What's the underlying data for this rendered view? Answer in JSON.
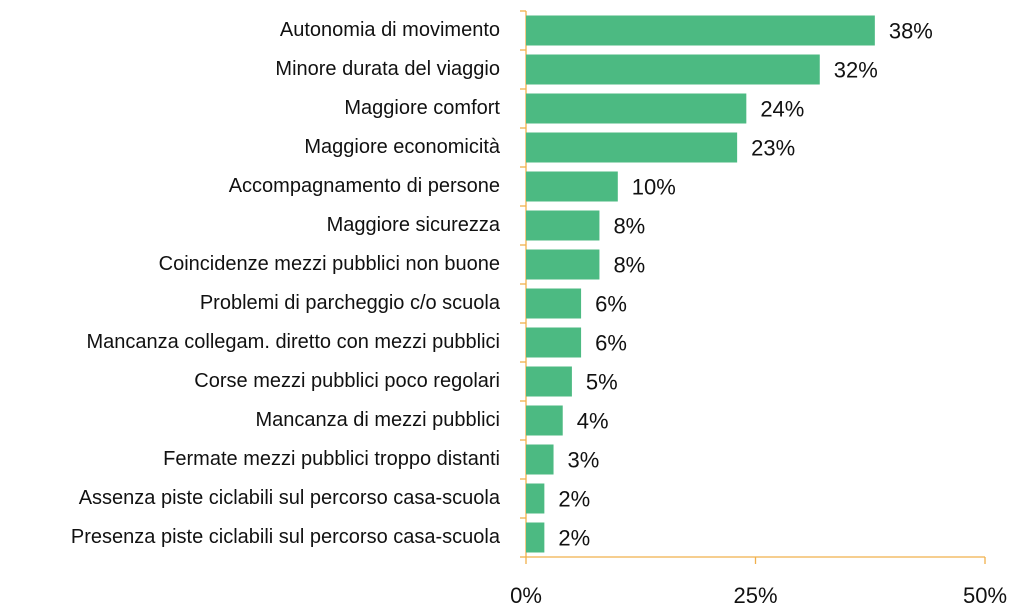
{
  "chart_data": {
    "type": "bar",
    "orientation": "horizontal",
    "categories": [
      "Autonomia di movimento",
      "Minore durata del viaggio",
      "Maggiore comfort",
      "Maggiore economicità",
      "Accompagnamento di persone",
      "Maggiore sicurezza",
      "Coincidenze mezzi pubblici non buone",
      "Problemi di parcheggio c/o scuola",
      "Mancanza collegam. diretto con mezzi pubblici",
      "Corse mezzi pubblici poco regolari",
      "Mancanza di mezzi pubblici",
      "Fermate mezzi pubblici troppo distanti",
      "Assenza piste ciclabili sul percorso casa-scuola",
      "Presenza piste ciclabili sul percorso casa-scuola"
    ],
    "values": [
      38,
      32,
      24,
      23,
      10,
      8,
      8,
      6,
      6,
      5,
      4,
      3,
      2,
      2
    ],
    "value_labels": [
      "38%",
      "32%",
      "24%",
      "23%",
      "10%",
      "8%",
      "8%",
      "6%",
      "6%",
      "5%",
      "4%",
      "3%",
      "2%",
      "2%"
    ],
    "color": "#4cba82",
    "xlim": [
      0,
      50
    ],
    "xticks": [
      {
        "value": 0,
        "label": "0%"
      },
      {
        "value": 25,
        "label": "25%"
      },
      {
        "value": 50,
        "label": "50%"
      }
    ]
  }
}
